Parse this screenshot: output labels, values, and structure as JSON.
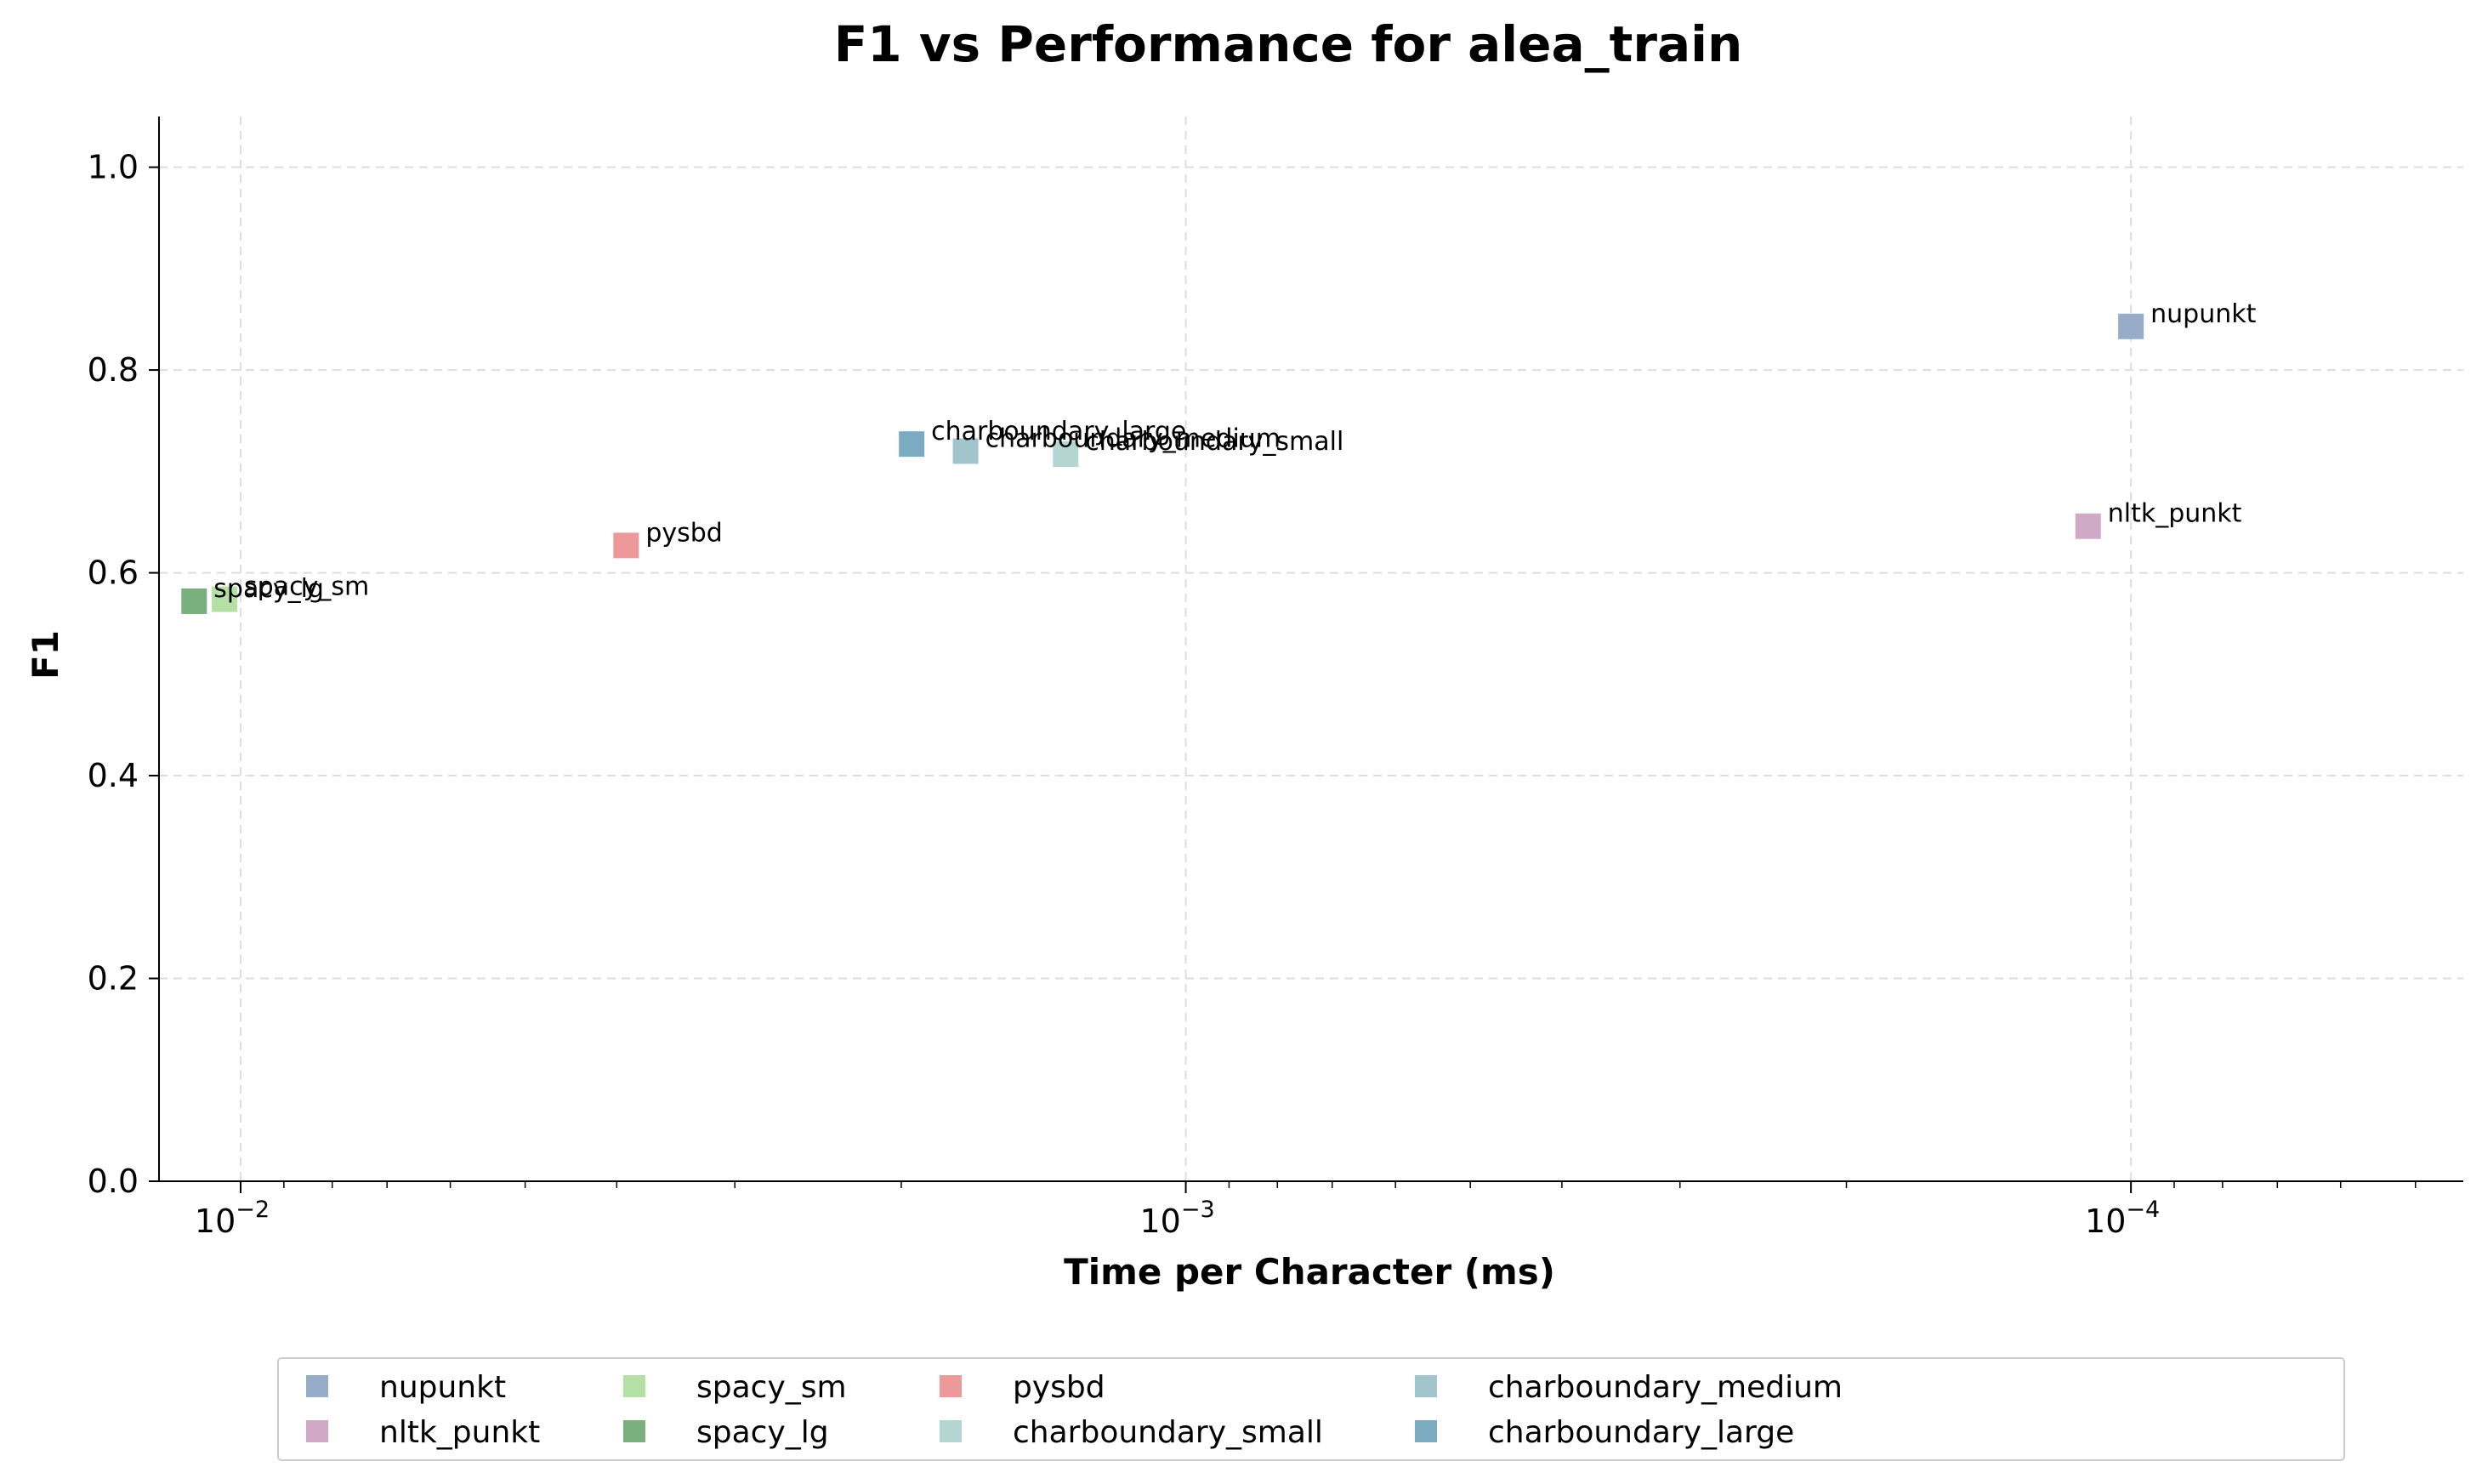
{
  "chart_data": {
    "type": "scatter",
    "title": "F1 vs Performance for alea_train",
    "xlabel": "Time per Character (ms)",
    "ylabel": "F1",
    "x_scale": "log",
    "x_inverted": true,
    "xlim": [
      0.0122,
      4.45e-05
    ],
    "ylim": [
      0.0,
      1.05
    ],
    "x_ticks": [
      {
        "value": 0.01,
        "label": "10",
        "exp": "−2"
      },
      {
        "value": 0.001,
        "label": "10",
        "exp": "−3"
      },
      {
        "value": 0.0001,
        "label": "10",
        "exp": "−4"
      }
    ],
    "y_ticks": [
      "0.0",
      "0.2",
      "0.4",
      "0.6",
      "0.8",
      "1.0"
    ],
    "grid": true,
    "legend_position": "bottom-center",
    "series": [
      {
        "name": "nupunkt",
        "color": "#97acc8",
        "x": 0.0001,
        "y": 0.843
      },
      {
        "name": "nltk_punkt",
        "color": "#d0a9c6",
        "x": 0.000111,
        "y": 0.646
      },
      {
        "name": "spacy_sm",
        "color": "#b5e0a5",
        "x": 0.0104,
        "y": 0.574
      },
      {
        "name": "spacy_lg",
        "color": "#7ab07e",
        "x": 0.0112,
        "y": 0.572
      },
      {
        "name": "pysbd",
        "color": "#ee9999",
        "x": 0.00391,
        "y": 0.627
      },
      {
        "name": "charboundary_small",
        "color": "#b3d6d3",
        "x": 0.00134,
        "y": 0.717
      },
      {
        "name": "charboundary_medium",
        "color": "#a2c4cc",
        "x": 0.00171,
        "y": 0.72
      },
      {
        "name": "charboundary_large",
        "color": "#7aabc1",
        "x": 0.00195,
        "y": 0.727
      }
    ]
  }
}
